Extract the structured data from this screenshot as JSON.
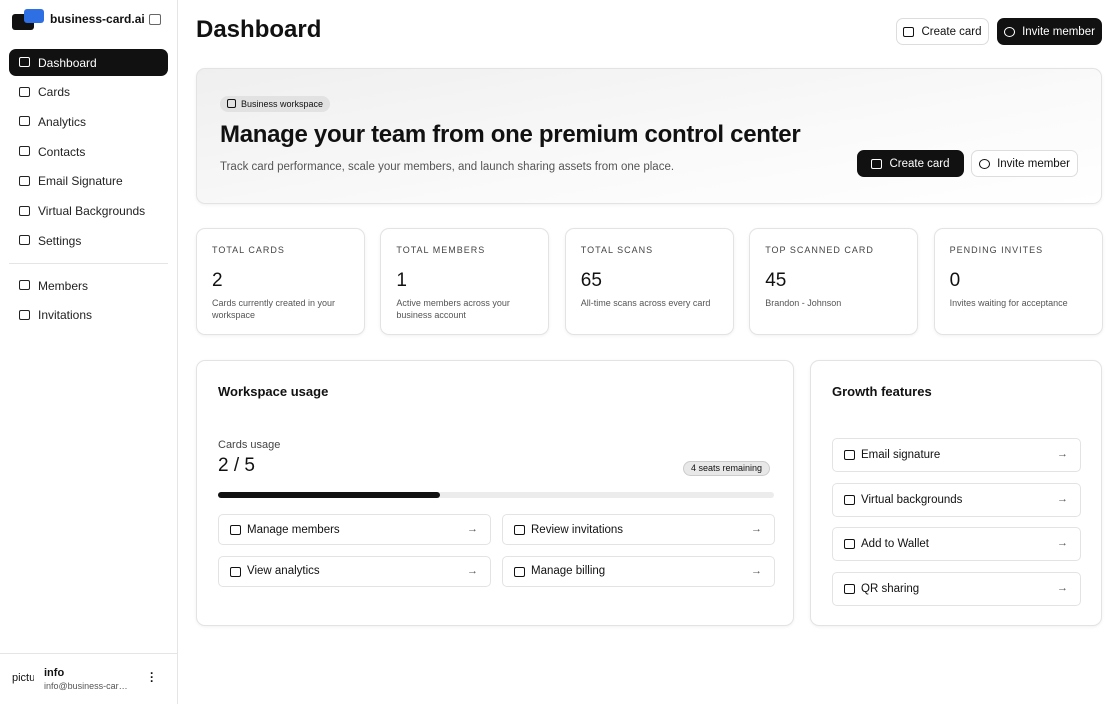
{
  "sidebar": {
    "brand": "business-card.ai",
    "nav": [
      "Dashboard",
      "Cards",
      "Analytics",
      "Contacts",
      "Email Signature",
      "Virtual Backgrounds",
      "Settings"
    ],
    "nav_secondary": [
      "Members",
      "Invitations"
    ],
    "active": 0,
    "user": {
      "avatar_alt": "picture",
      "name": "info",
      "email": "info@business-card.ai"
    }
  },
  "header": {
    "title": "Dashboard",
    "buttons": [
      "Create card",
      "Invite member"
    ]
  },
  "hero": {
    "badge": "Business workspace",
    "title": "Manage your team from one premium control center",
    "subtitle": "Track card performance, scale your members, and launch sharing assets from one place.",
    "buttons": [
      "Create card",
      "Invite member"
    ]
  },
  "stats": [
    {
      "label": "TOTAL CARDS",
      "value": 2,
      "description": "Cards currently created in your workspace"
    },
    {
      "label": "TOTAL MEMBERS",
      "value": 1,
      "description": "Active members across your business account"
    },
    {
      "label": "TOTAL SCANS",
      "value": 65,
      "description": "All-time scans across every card"
    },
    {
      "label": "TOP SCANNED CARD",
      "value": 45,
      "description": "Brandon - Johnson"
    },
    {
      "label": "PENDING INVITES",
      "value": 0,
      "description": "Invites waiting for acceptance"
    }
  ],
  "usage": {
    "title": "Workspace usage",
    "label": "Cards usage",
    "value": "2 / 5",
    "badge": "4 seats remaining",
    "progress_percent": 40,
    "actions": [
      "Manage members",
      "Review invitations",
      "View analytics",
      "Manage billing"
    ]
  },
  "growth": {
    "title": "Growth features",
    "items": [
      "Email signature",
      "Virtual backgrounds",
      "Add to Wallet",
      "QR sharing"
    ]
  }
}
